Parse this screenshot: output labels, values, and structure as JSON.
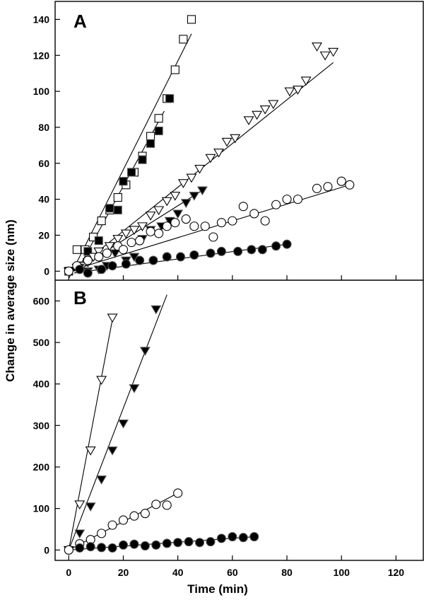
{
  "chart_data": [
    {
      "type": "scatter",
      "panel_label": "A",
      "xlim": [
        -5,
        130
      ],
      "ylim": [
        -5,
        150
      ],
      "xticks": [
        0,
        20,
        40,
        60,
        80,
        100,
        120
      ],
      "yticks": [
        0,
        20,
        40,
        60,
        80,
        100,
        120,
        140
      ],
      "grid": false,
      "series": [
        {
          "marker": "square-open",
          "points": [
            [
              0,
              0
            ],
            [
              3,
              12
            ],
            [
              6,
              12
            ],
            [
              9,
              19
            ],
            [
              12,
              28
            ],
            [
              15,
              34
            ],
            [
              18,
              41
            ],
            [
              21,
              48
            ],
            [
              24,
              55
            ],
            [
              27,
              64
            ],
            [
              30,
              75
            ],
            [
              33,
              85
            ],
            [
              36,
              96
            ],
            [
              39,
              112
            ],
            [
              42,
              129
            ],
            [
              45,
              140
            ]
          ],
          "fit": [
            [
              0,
              -4
            ],
            [
              45,
              132
            ]
          ]
        },
        {
          "marker": "square-filled",
          "points": [
            [
              4,
              3
            ],
            [
              7,
              11
            ],
            [
              11,
              17
            ],
            [
              15,
              35
            ],
            [
              18,
              34
            ],
            [
              20,
              50
            ],
            [
              23,
              55
            ],
            [
              27,
              62
            ],
            [
              30,
              71
            ],
            [
              33,
              78
            ],
            [
              37,
              96
            ]
          ],
          "fit": [
            [
              3,
              0
            ],
            [
              35,
              89
            ]
          ]
        },
        {
          "marker": "triangle-open",
          "points": [
            [
              0,
              0
            ],
            [
              3,
              2
            ],
            [
              5,
              3
            ],
            [
              7,
              5
            ],
            [
              9,
              8
            ],
            [
              11,
              11
            ],
            [
              15,
              14
            ],
            [
              18,
              18
            ],
            [
              21,
              21
            ],
            [
              24,
              23
            ],
            [
              27,
              25
            ],
            [
              30,
              31
            ],
            [
              33,
              34
            ],
            [
              36,
              39
            ],
            [
              39,
              42
            ],
            [
              42,
              49
            ],
            [
              45,
              52
            ],
            [
              48,
              57
            ],
            [
              52,
              63
            ],
            [
              55,
              66
            ],
            [
              58,
              72
            ],
            [
              61,
              74
            ],
            [
              66,
              84
            ],
            [
              69,
              87
            ],
            [
              72,
              90
            ],
            [
              75,
              93
            ],
            [
              81,
              100
            ],
            [
              84,
              101
            ],
            [
              87,
              106
            ],
            [
              91,
              125
            ],
            [
              94,
              120
            ],
            [
              97,
              122
            ]
          ],
          "fit": [
            [
              0,
              -2
            ],
            [
              97,
              116
            ]
          ]
        },
        {
          "marker": "triangle-filled",
          "points": [
            [
              4,
              2
            ],
            [
              7,
              0
            ],
            [
              11,
              1
            ],
            [
              14,
              3
            ],
            [
              17,
              10
            ],
            [
              21,
              6
            ],
            [
              24,
              8
            ],
            [
              27,
              18
            ],
            [
              30,
              23
            ],
            [
              34,
              25
            ],
            [
              37,
              28
            ],
            [
              40,
              32
            ],
            [
              43,
              38
            ],
            [
              46,
              42
            ],
            [
              49,
              45
            ]
          ],
          "fit": [
            [
              2,
              0
            ],
            [
              49,
              45
            ]
          ]
        },
        {
          "marker": "circle-open",
          "points": [
            [
              0,
              0
            ],
            [
              3,
              3
            ],
            [
              7,
              6
            ],
            [
              11,
              8
            ],
            [
              14,
              10
            ],
            [
              18,
              14
            ],
            [
              20,
              12
            ],
            [
              23,
              16
            ],
            [
              26,
              17
            ],
            [
              30,
              22
            ],
            [
              33,
              21
            ],
            [
              36,
              25
            ],
            [
              39,
              27
            ],
            [
              43,
              29
            ],
            [
              46,
              25
            ],
            [
              50,
              25
            ],
            [
              53,
              19
            ],
            [
              56,
              27
            ],
            [
              60,
              28
            ],
            [
              64,
              36
            ],
            [
              68,
              32
            ],
            [
              72,
              28
            ],
            [
              76,
              37
            ],
            [
              80,
              40
            ],
            [
              84,
              40
            ],
            [
              91,
              46
            ],
            [
              95,
              47
            ],
            [
              100,
              50
            ],
            [
              103,
              48
            ]
          ],
          "fit": [
            [
              0,
              0
            ],
            [
              103,
              48
            ]
          ]
        },
        {
          "marker": "circle-filled",
          "points": [
            [
              4,
              1
            ],
            [
              7,
              -1
            ],
            [
              12,
              1
            ],
            [
              16,
              3
            ],
            [
              21,
              4
            ],
            [
              26,
              6
            ],
            [
              31,
              6
            ],
            [
              36,
              8
            ],
            [
              41,
              8
            ],
            [
              46,
              9
            ],
            [
              52,
              10
            ],
            [
              56,
              11
            ],
            [
              62,
              11
            ],
            [
              67,
              12
            ],
            [
              71,
              12
            ],
            [
              76,
              14
            ],
            [
              80,
              15
            ]
          ],
          "fit": [
            [
              2,
              -1
            ],
            [
              80,
              15
            ]
          ]
        }
      ]
    },
    {
      "type": "scatter",
      "panel_label": "B",
      "xlim": [
        -5,
        130
      ],
      "ylim": [
        -25,
        650
      ],
      "xticks": [
        0,
        20,
        40,
        60,
        80,
        100,
        120
      ],
      "yticks": [
        0,
        100,
        200,
        300,
        400,
        500,
        600
      ],
      "grid": false,
      "xlabel": "Time (min)",
      "series": [
        {
          "marker": "triangle-open",
          "points": [
            [
              0,
              0
            ],
            [
              4,
              110
            ],
            [
              8,
              240
            ],
            [
              12,
              410
            ],
            [
              16,
              560
            ]
          ],
          "fit": [
            [
              0,
              0
            ],
            [
              16,
              555
            ]
          ]
        },
        {
          "marker": "triangle-filled",
          "points": [
            [
              4,
              40
            ],
            [
              8,
              105
            ],
            [
              12,
              170
            ],
            [
              16,
              240
            ],
            [
              20,
              305
            ],
            [
              24,
              390
            ],
            [
              28,
              480
            ],
            [
              32,
              580
            ]
          ],
          "fit": [
            [
              0,
              0
            ],
            [
              36,
              615
            ]
          ]
        },
        {
          "marker": "circle-open",
          "points": [
            [
              0,
              0
            ],
            [
              4,
              15
            ],
            [
              8,
              25
            ],
            [
              12,
              40
            ],
            [
              16,
              60
            ],
            [
              20,
              72
            ],
            [
              24,
              82
            ],
            [
              28,
              88
            ],
            [
              32,
              110
            ],
            [
              36,
              108
            ],
            [
              40,
              137
            ]
          ],
          "fit": [
            [
              0,
              0
            ],
            [
              40,
              137
            ]
          ]
        },
        {
          "marker": "circle-filled",
          "points": [
            [
              4,
              5
            ],
            [
              8,
              8
            ],
            [
              12,
              6
            ],
            [
              16,
              5
            ],
            [
              20,
              12
            ],
            [
              24,
              14
            ],
            [
              28,
              10
            ],
            [
              32,
              12
            ],
            [
              36,
              16
            ],
            [
              40,
              18
            ],
            [
              44,
              20
            ],
            [
              48,
              18
            ],
            [
              52,
              20
            ],
            [
              56,
              28
            ],
            [
              60,
              32
            ],
            [
              64,
              30
            ],
            [
              68,
              32
            ]
          ],
          "fit": [
            [
              0,
              0
            ],
            [
              68,
              32
            ]
          ]
        }
      ]
    }
  ],
  "ylabel": "Change in average size (nm)"
}
